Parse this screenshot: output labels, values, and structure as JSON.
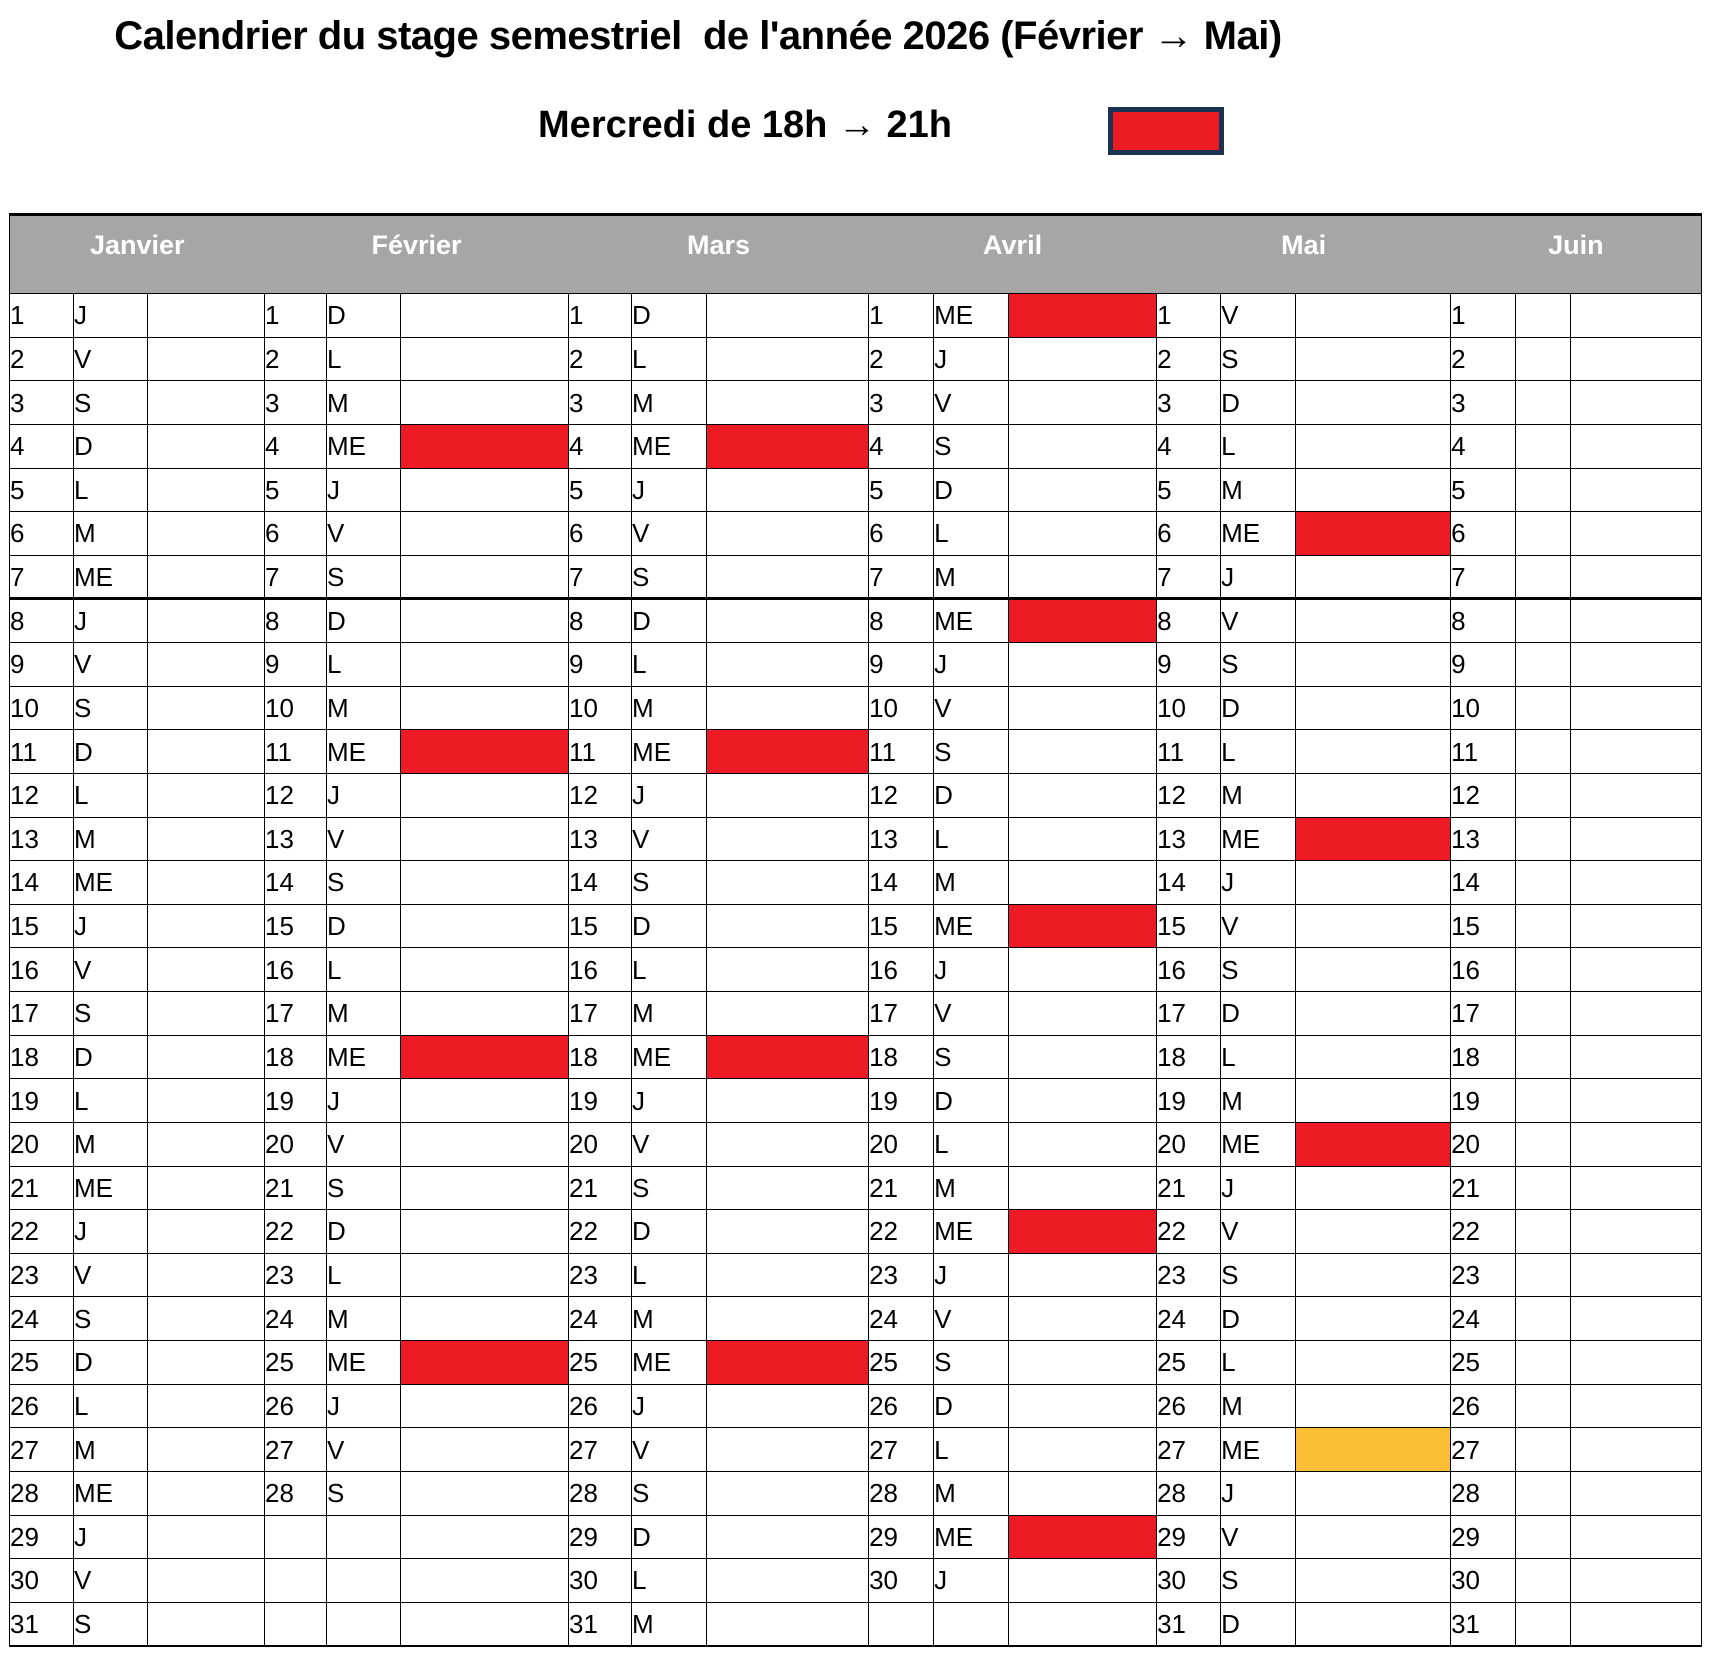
{
  "title": "Calendrier du stage semestriel  de l'année 2026 (Février → Mai)",
  "subtitle": "Mercredi de 18h → 21h",
  "legend": {
    "meaning": "Mercredi de 18h → 21h",
    "swatch_color": "#ED1C24"
  },
  "colors": {
    "red": "#ED1C24",
    "orange": "#FCBE37",
    "header_gray": "#A6A6A6",
    "navy": "#1B3350"
  },
  "calendar": {
    "thick_line_after_row": 7,
    "months": [
      {
        "name": "Janvier",
        "days": [
          [
            "1",
            "J",
            ""
          ],
          [
            "2",
            "V",
            ""
          ],
          [
            "3",
            "S",
            ""
          ],
          [
            "4",
            "D",
            ""
          ],
          [
            "5",
            "L",
            ""
          ],
          [
            "6",
            "M",
            ""
          ],
          [
            "7",
            "ME",
            ""
          ],
          [
            "8",
            "J",
            ""
          ],
          [
            "9",
            "V",
            ""
          ],
          [
            "10",
            "S",
            ""
          ],
          [
            "11",
            "D",
            ""
          ],
          [
            "12",
            "L",
            ""
          ],
          [
            "13",
            "M",
            ""
          ],
          [
            "14",
            "ME",
            ""
          ],
          [
            "15",
            "J",
            ""
          ],
          [
            "16",
            "V",
            ""
          ],
          [
            "17",
            "S",
            ""
          ],
          [
            "18",
            "D",
            ""
          ],
          [
            "19",
            "L",
            ""
          ],
          [
            "20",
            "M",
            ""
          ],
          [
            "21",
            "ME",
            ""
          ],
          [
            "22",
            "J",
            ""
          ],
          [
            "23",
            "V",
            ""
          ],
          [
            "24",
            "S",
            ""
          ],
          [
            "25",
            "D",
            ""
          ],
          [
            "26",
            "L",
            ""
          ],
          [
            "27",
            "M",
            ""
          ],
          [
            "28",
            "ME",
            ""
          ],
          [
            "29",
            "J",
            ""
          ],
          [
            "30",
            "V",
            ""
          ],
          [
            "31",
            "S",
            ""
          ]
        ]
      },
      {
        "name": "Février",
        "days": [
          [
            "1",
            "D",
            ""
          ],
          [
            "2",
            "L",
            ""
          ],
          [
            "3",
            "M",
            ""
          ],
          [
            "4",
            "ME",
            "red"
          ],
          [
            "5",
            "J",
            ""
          ],
          [
            "6",
            "V",
            ""
          ],
          [
            "7",
            "S",
            ""
          ],
          [
            "8",
            "D",
            ""
          ],
          [
            "9",
            "L",
            ""
          ],
          [
            "10",
            "M",
            ""
          ],
          [
            "11",
            "ME",
            "red"
          ],
          [
            "12",
            "J",
            ""
          ],
          [
            "13",
            "V",
            ""
          ],
          [
            "14",
            "S",
            ""
          ],
          [
            "15",
            "D",
            ""
          ],
          [
            "16",
            "L",
            ""
          ],
          [
            "17",
            "M",
            ""
          ],
          [
            "18",
            "ME",
            "red"
          ],
          [
            "19",
            "J",
            ""
          ],
          [
            "20",
            "V",
            ""
          ],
          [
            "21",
            "S",
            ""
          ],
          [
            "22",
            "D",
            ""
          ],
          [
            "23",
            "L",
            ""
          ],
          [
            "24",
            "M",
            ""
          ],
          [
            "25",
            "ME",
            "red"
          ],
          [
            "26",
            "J",
            ""
          ],
          [
            "27",
            "V",
            ""
          ],
          [
            "28",
            "S",
            ""
          ],
          [
            "",
            "",
            ""
          ],
          [
            "",
            "",
            ""
          ],
          [
            "",
            "",
            ""
          ]
        ]
      },
      {
        "name": "Mars",
        "days": [
          [
            "1",
            "D",
            ""
          ],
          [
            "2",
            "L",
            ""
          ],
          [
            "3",
            "M",
            ""
          ],
          [
            "4",
            "ME",
            "red"
          ],
          [
            "5",
            "J",
            ""
          ],
          [
            "6",
            "V",
            ""
          ],
          [
            "7",
            "S",
            ""
          ],
          [
            "8",
            "D",
            ""
          ],
          [
            "9",
            "L",
            ""
          ],
          [
            "10",
            "M",
            ""
          ],
          [
            "11",
            "ME",
            "red"
          ],
          [
            "12",
            "J",
            ""
          ],
          [
            "13",
            "V",
            ""
          ],
          [
            "14",
            "S",
            ""
          ],
          [
            "15",
            "D",
            ""
          ],
          [
            "16",
            "L",
            ""
          ],
          [
            "17",
            "M",
            ""
          ],
          [
            "18",
            "ME",
            "red"
          ],
          [
            "19",
            "J",
            ""
          ],
          [
            "20",
            "V",
            ""
          ],
          [
            "21",
            "S",
            ""
          ],
          [
            "22",
            "D",
            ""
          ],
          [
            "23",
            "L",
            ""
          ],
          [
            "24",
            "M",
            ""
          ],
          [
            "25",
            "ME",
            "red"
          ],
          [
            "26",
            "J",
            ""
          ],
          [
            "27",
            "V",
            ""
          ],
          [
            "28",
            "S",
            ""
          ],
          [
            "29",
            "D",
            ""
          ],
          [
            "30",
            "L",
            ""
          ],
          [
            "31",
            "M",
            ""
          ]
        ]
      },
      {
        "name": "Avril",
        "days": [
          [
            "1",
            "ME",
            "red"
          ],
          [
            "2",
            "J",
            ""
          ],
          [
            "3",
            "V",
            ""
          ],
          [
            "4",
            "S",
            ""
          ],
          [
            "5",
            "D",
            ""
          ],
          [
            "6",
            "L",
            ""
          ],
          [
            "7",
            "M",
            ""
          ],
          [
            "8",
            "ME",
            "red"
          ],
          [
            "9",
            "J",
            ""
          ],
          [
            "10",
            "V",
            ""
          ],
          [
            "11",
            "S",
            ""
          ],
          [
            "12",
            "D",
            ""
          ],
          [
            "13",
            "L",
            ""
          ],
          [
            "14",
            "M",
            ""
          ],
          [
            "15",
            "ME",
            "red"
          ],
          [
            "16",
            "J",
            ""
          ],
          [
            "17",
            "V",
            ""
          ],
          [
            "18",
            "S",
            ""
          ],
          [
            "19",
            "D",
            ""
          ],
          [
            "20",
            "L",
            ""
          ],
          [
            "21",
            "M",
            ""
          ],
          [
            "22",
            "ME",
            "red"
          ],
          [
            "23",
            "J",
            ""
          ],
          [
            "24",
            "V",
            ""
          ],
          [
            "25",
            "S",
            ""
          ],
          [
            "26",
            "D",
            ""
          ],
          [
            "27",
            "L",
            ""
          ],
          [
            "28",
            "M",
            ""
          ],
          [
            "29",
            "ME",
            "red"
          ],
          [
            "30",
            "J",
            ""
          ],
          [
            "",
            "",
            ""
          ]
        ]
      },
      {
        "name": "Mai",
        "days": [
          [
            "1",
            "V",
            ""
          ],
          [
            "2",
            "S",
            ""
          ],
          [
            "3",
            "D",
            ""
          ],
          [
            "4",
            "L",
            ""
          ],
          [
            "5",
            "M",
            ""
          ],
          [
            "6",
            "ME",
            "red"
          ],
          [
            "7",
            "J",
            ""
          ],
          [
            "8",
            "V",
            ""
          ],
          [
            "9",
            "S",
            ""
          ],
          [
            "10",
            "D",
            ""
          ],
          [
            "11",
            "L",
            ""
          ],
          [
            "12",
            "M",
            ""
          ],
          [
            "13",
            "ME",
            "red"
          ],
          [
            "14",
            "J",
            ""
          ],
          [
            "15",
            "V",
            ""
          ],
          [
            "16",
            "S",
            ""
          ],
          [
            "17",
            "D",
            ""
          ],
          [
            "18",
            "L",
            ""
          ],
          [
            "19",
            "M",
            ""
          ],
          [
            "20",
            "ME",
            "red"
          ],
          [
            "21",
            "J",
            ""
          ],
          [
            "22",
            "V",
            ""
          ],
          [
            "23",
            "S",
            ""
          ],
          [
            "24",
            "D",
            ""
          ],
          [
            "25",
            "L",
            ""
          ],
          [
            "26",
            "M",
            ""
          ],
          [
            "27",
            "ME",
            "orange"
          ],
          [
            "28",
            "J",
            ""
          ],
          [
            "29",
            "V",
            ""
          ],
          [
            "30",
            "S",
            ""
          ],
          [
            "31",
            "D",
            ""
          ]
        ]
      },
      {
        "name": "Juin",
        "days": [
          [
            "1",
            "",
            ""
          ],
          [
            "2",
            "",
            ""
          ],
          [
            "3",
            "",
            ""
          ],
          [
            "4",
            "",
            ""
          ],
          [
            "5",
            "",
            ""
          ],
          [
            "6",
            "",
            ""
          ],
          [
            "7",
            "",
            ""
          ],
          [
            "8",
            "",
            ""
          ],
          [
            "9",
            "",
            ""
          ],
          [
            "10",
            "",
            ""
          ],
          [
            "11",
            "",
            ""
          ],
          [
            "12",
            "",
            ""
          ],
          [
            "13",
            "",
            ""
          ],
          [
            "14",
            "",
            ""
          ],
          [
            "15",
            "",
            ""
          ],
          [
            "16",
            "",
            ""
          ],
          [
            "17",
            "",
            ""
          ],
          [
            "18",
            "",
            ""
          ],
          [
            "19",
            "",
            ""
          ],
          [
            "20",
            "",
            ""
          ],
          [
            "21",
            "",
            ""
          ],
          [
            "22",
            "",
            ""
          ],
          [
            "23",
            "",
            ""
          ],
          [
            "24",
            "",
            ""
          ],
          [
            "25",
            "",
            ""
          ],
          [
            "26",
            "",
            ""
          ],
          [
            "27",
            "",
            ""
          ],
          [
            "28",
            "",
            ""
          ],
          [
            "29",
            "",
            ""
          ],
          [
            "30",
            "",
            ""
          ],
          [
            "31",
            "",
            ""
          ]
        ]
      }
    ]
  }
}
